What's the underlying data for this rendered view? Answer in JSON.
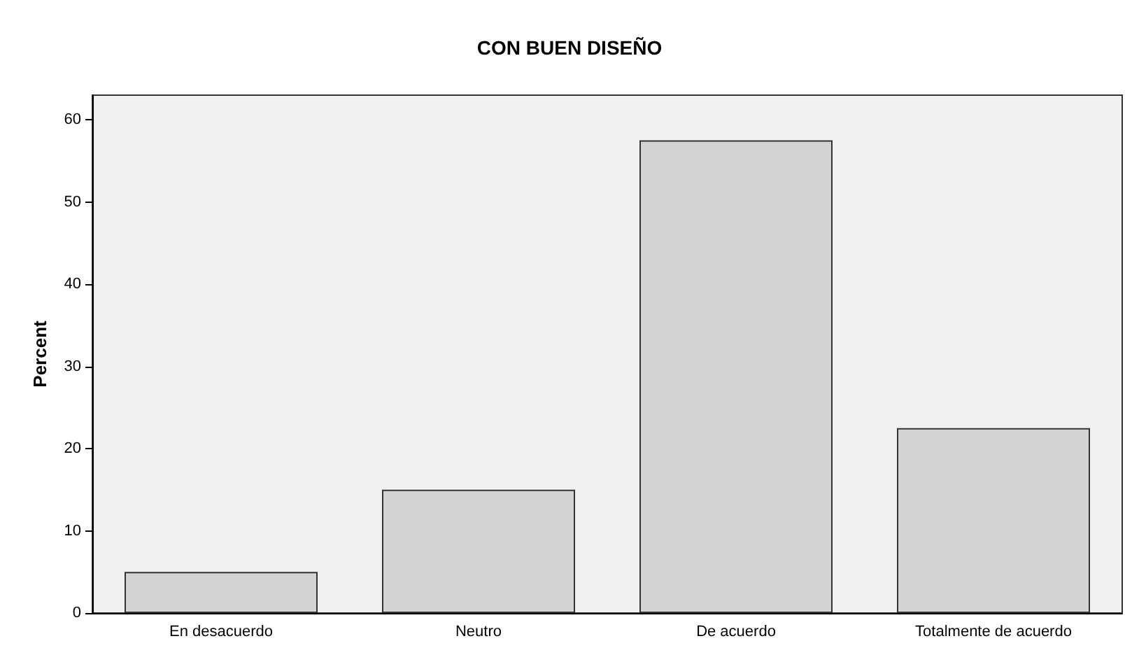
{
  "chart_data": {
    "type": "bar",
    "title": "CON BUEN DISEÑO",
    "ylabel": "Percent",
    "categories": [
      "En desacuerdo",
      "Neutro",
      "De acuerdo",
      "Totalmente de acuerdo"
    ],
    "values": [
      5,
      15,
      57.5,
      22.5
    ],
    "color": "#d3d3d3",
    "ylim": [
      0,
      63
    ],
    "yticks": [
      0,
      10,
      20,
      30,
      40,
      50,
      60
    ],
    "grid": false
  }
}
